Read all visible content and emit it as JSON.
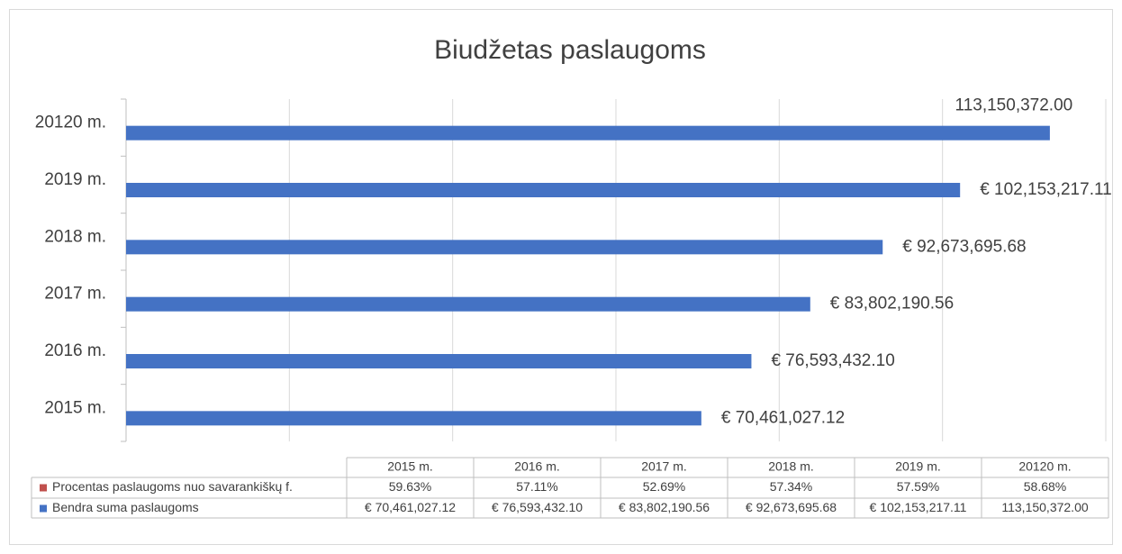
{
  "chart_data": {
    "type": "bar",
    "orientation": "horizontal",
    "title": "Biudžetas paslaugoms",
    "categories": [
      "2015 m.",
      "2016 m.",
      "2017 m.",
      "2018 m.",
      "2019 m.",
      "20120 m."
    ],
    "series": [
      {
        "name": "Procentas paslaugoms nuo savarankiškų f.",
        "color": "#c0504d",
        "values": [
          59.63,
          57.11,
          52.69,
          57.34,
          57.59,
          58.68
        ],
        "value_labels": [
          "59.63%",
          "57.11%",
          "52.69%",
          "57.34%",
          "57.59%",
          "58.68%"
        ]
      },
      {
        "name": "Bendra suma paslaugoms",
        "color": "#4472c4",
        "values": [
          70461027.12,
          76593432.1,
          83802190.56,
          92673695.68,
          102153217.11,
          113150372.0
        ],
        "value_labels": [
          "€ 70,461,027.12",
          "€ 76,593,432.10",
          "€ 83,802,190.56",
          "€ 92,673,695.68",
          "€ 102,153,217.11",
          "113,150,372.00"
        ]
      }
    ],
    "xlim": [
      0,
      120000000
    ],
    "xticks": [
      0,
      20000000,
      40000000,
      60000000,
      80000000,
      100000000,
      120000000
    ],
    "grid": true,
    "data_table": true
  }
}
